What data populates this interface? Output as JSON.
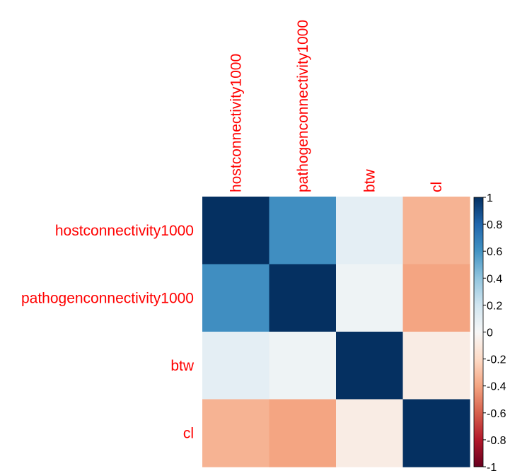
{
  "chart_data": {
    "type": "heatmap",
    "row_labels": [
      "hostconnectivity1000",
      "pathogenconnectivity1000",
      "btw",
      "cl"
    ],
    "col_labels": [
      "hostconnectivity1000",
      "pathogenconnectivity1000",
      "btw",
      "cl"
    ],
    "values": [
      [
        1.0,
        0.62,
        0.1,
        -0.35
      ],
      [
        0.62,
        1.0,
        0.05,
        -0.4
      ],
      [
        0.1,
        0.05,
        1.0,
        -0.08
      ],
      [
        -0.35,
        -0.4,
        -0.08,
        1.0
      ]
    ],
    "colorbar": {
      "range": [
        -1,
        1
      ],
      "ticks": [
        "1",
        "0.8",
        "0.6",
        "0.4",
        "0.2",
        "0",
        "-0.2",
        "-0.4",
        "-0.6",
        "-0.8",
        "-1"
      ]
    },
    "label_color": "#ff0000",
    "colors": {
      "negative_end": "#67001f",
      "neutral": "#f7f7f7",
      "positive_end": "#053061"
    }
  }
}
